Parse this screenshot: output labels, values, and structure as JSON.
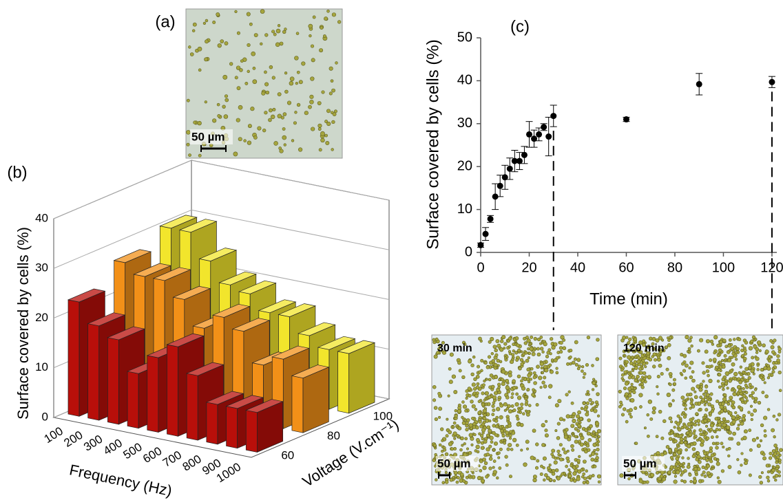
{
  "images": [
    {
      "label": "(a)",
      "scale_bar": "50 µm"
    },
    {
      "label": "30 min",
      "scale_bar": "50 µm"
    },
    {
      "label": "120 min",
      "scale_bar": "50 µm"
    }
  ],
  "chart_data": [
    {
      "type": "bar3d",
      "title": "(b)",
      "zlabel": "Surface covered by cells (%)",
      "xlabel": "Frequency (Hz)",
      "depth_label": "Voltage (V.cm⁻¹)",
      "categories": [
        "100",
        "200",
        "300",
        "400",
        "500",
        "600",
        "700",
        "800",
        "900",
        "1000"
      ],
      "series": [
        {
          "name": "60",
          "color": "#b80f0a",
          "values": [
            23,
            19,
            17,
            11,
            15,
            18,
            13,
            8,
            8,
            8
          ]
        },
        {
          "name": "80",
          "color": "#f29018",
          "values": [
            27,
            25,
            25,
            22,
            17,
            20,
            18,
            12,
            14,
            11
          ]
        },
        {
          "name": "100",
          "color": "#f2e52c",
          "values": [
            30,
            30,
            25,
            21,
            20,
            17,
            17,
            14,
            12,
            12
          ]
        }
      ],
      "zlim": [
        0,
        40
      ],
      "zticks": [
        0,
        10,
        20,
        30,
        40
      ],
      "grid": true
    },
    {
      "type": "scatter",
      "title": "(c)",
      "xlabel": "Time (min)",
      "ylabel": "Surface covered by cells (%)",
      "x": [
        0,
        2,
        4,
        6,
        8,
        10,
        12,
        14,
        16,
        18,
        20,
        22,
        24,
        26,
        28,
        30,
        60,
        90,
        120
      ],
      "values": [
        1.7,
        4.3,
        7.8,
        13,
        15.5,
        17.5,
        19.5,
        21.3,
        21.3,
        22.7,
        27.5,
        26.5,
        27.5,
        29.2,
        27,
        31.8,
        31,
        39.2,
        39.7
      ],
      "errors": [
        0.5,
        1.5,
        0.8,
        3,
        2.5,
        2.8,
        2.5,
        2.5,
        2,
        2,
        3,
        2,
        1.5,
        0.8,
        4.5,
        2.5,
        0.5,
        2.5,
        1.3
      ],
      "color": "#000000",
      "xlim": [
        0,
        122
      ],
      "ylim": [
        0,
        50
      ],
      "xticks": [
        0,
        20,
        40,
        60,
        80,
        100,
        120
      ],
      "yticks": [
        0,
        10,
        20,
        30,
        40,
        50
      ]
    }
  ]
}
